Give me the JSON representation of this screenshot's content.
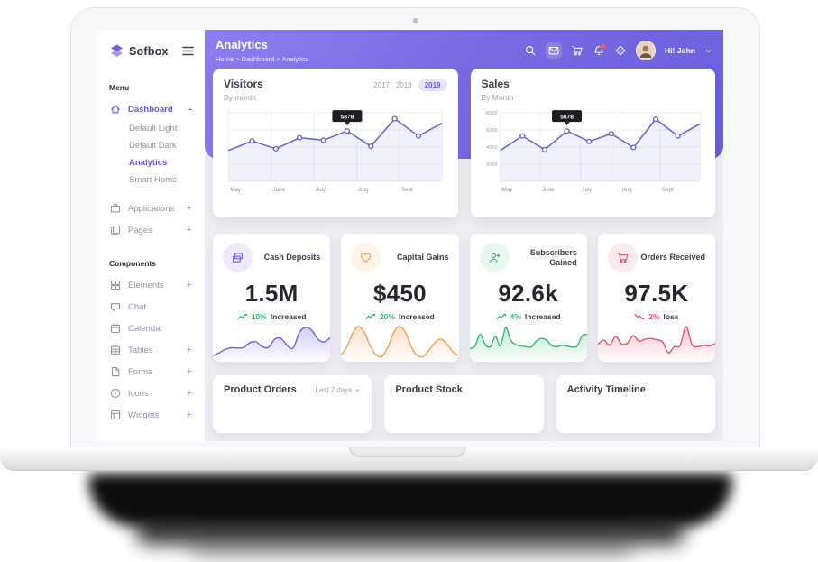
{
  "sidebar": {
    "logo_text": "Sofbox",
    "menu_label": "Menu",
    "components_label": "Components",
    "dashboard": {
      "label": "Dashboard",
      "expander": "-"
    },
    "dashboard_children": [
      {
        "label": "Default Light"
      },
      {
        "label": "Default Dark"
      },
      {
        "label": "Analytics"
      },
      {
        "label": "Smart Home"
      }
    ],
    "apps": {
      "label": "Applications",
      "expander": "+"
    },
    "pages": {
      "label": "Pages",
      "expander": "+"
    },
    "components": [
      {
        "label": "Elements",
        "expander": "+"
      },
      {
        "label": "Chat",
        "expander": ""
      },
      {
        "label": "Calendar",
        "expander": ""
      },
      {
        "label": "Tables",
        "expander": "+"
      },
      {
        "label": "Forms",
        "expander": "+"
      },
      {
        "label": "Icons",
        "expander": "+"
      },
      {
        "label": "Widgets",
        "expander": "+"
      }
    ]
  },
  "header": {
    "title": "Analytics",
    "breadcrumb": "Home > Dashboard > Analytics",
    "user_greeting": "Hi! John"
  },
  "charts": {
    "visitors": {
      "title": "Visitors",
      "subtitle": "By month",
      "years": [
        "2017",
        "2018",
        "2019"
      ],
      "active_year": "2019",
      "chart_data": {
        "type": "line",
        "x": [
          "May",
          "June",
          "July",
          "Aug",
          "Sept"
        ],
        "values": [
          3600,
          4700,
          3800,
          5100,
          4800,
          5878,
          4100,
          7300,
          5300,
          6800
        ],
        "ylim": [
          0,
          8000
        ],
        "yticks": [],
        "grid": true,
        "tooltip": {
          "index": 5,
          "label": "5878"
        }
      }
    },
    "sales": {
      "title": "Sales",
      "subtitle": "By Month",
      "chart_data": {
        "type": "line",
        "x": [
          "May",
          "June",
          "July",
          "Aug",
          "Sept"
        ],
        "values": [
          3600,
          5300,
          3700,
          5878,
          4650,
          5550,
          3950,
          7250,
          5300,
          6700
        ],
        "ylim": [
          0,
          8000
        ],
        "yticks": [
          8000,
          6000,
          4000,
          2000
        ],
        "grid": true,
        "tooltip": {
          "index": 3,
          "label": "5878"
        }
      }
    }
  },
  "stats": {
    "cards": [
      {
        "label": "Cash Deposits",
        "value": "1.5M",
        "trend_pct": "10%",
        "trend_word": "Increased",
        "direction": "up",
        "color": "#6c61e4",
        "icon": "deposits-icon",
        "spark": [
          10,
          18,
          28,
          33,
          32,
          34,
          48,
          50,
          36,
          34,
          58,
          60,
          40,
          32,
          78,
          92,
          84,
          58,
          50,
          62
        ]
      },
      {
        "label": "Capital Gains",
        "value": "$450",
        "trend_pct": "20%",
        "trend_word": "Increased",
        "direction": "up",
        "color": "#f79d52",
        "icon": "heart-icon",
        "spark": [
          12,
          35,
          75,
          95,
          78,
          38,
          12,
          8,
          35,
          78,
          95,
          78,
          35,
          10,
          8,
          25,
          48,
          58,
          45,
          22,
          10
        ]
      },
      {
        "label": "Subscribers Gained",
        "value": "92.6k",
        "trend_pct": "4%",
        "trend_word": "Increased",
        "direction": "up",
        "color": "#35b56f",
        "icon": "user-plus-icon",
        "spark": [
          30,
          38,
          72,
          42,
          36,
          66,
          38,
          92,
          55,
          42,
          38,
          36,
          35,
          52,
          60,
          55,
          40,
          36,
          40,
          38,
          35,
          38,
          68,
          72
        ]
      },
      {
        "label": "Orders Received",
        "value": "97.5K",
        "trend_pct": "2%",
        "trend_word": "loss",
        "direction": "down",
        "color": "#e8506b",
        "icon": "cart-icon",
        "spark": [
          42,
          55,
          40,
          66,
          44,
          46,
          68,
          52,
          58,
          60,
          56,
          50,
          18,
          36,
          40,
          95,
          42,
          36,
          40,
          38,
          45
        ]
      }
    ]
  },
  "bottom": {
    "cards": [
      {
        "title": "Product Orders",
        "filter": "Last 7 days"
      },
      {
        "title": "Product Stock",
        "filter": ""
      },
      {
        "title": "Activity Timeline",
        "filter": ""
      }
    ]
  },
  "colors": {
    "accent": "#6c61e4",
    "header_gradient_start": "#8d7eef",
    "header_gradient_end": "#6c5fdc",
    "chart_line": "#6360d9",
    "tooltip_bg": "#1d1d1f",
    "green": "#2eb86a",
    "orange": "#f79d52",
    "red": "#e8506b"
  }
}
